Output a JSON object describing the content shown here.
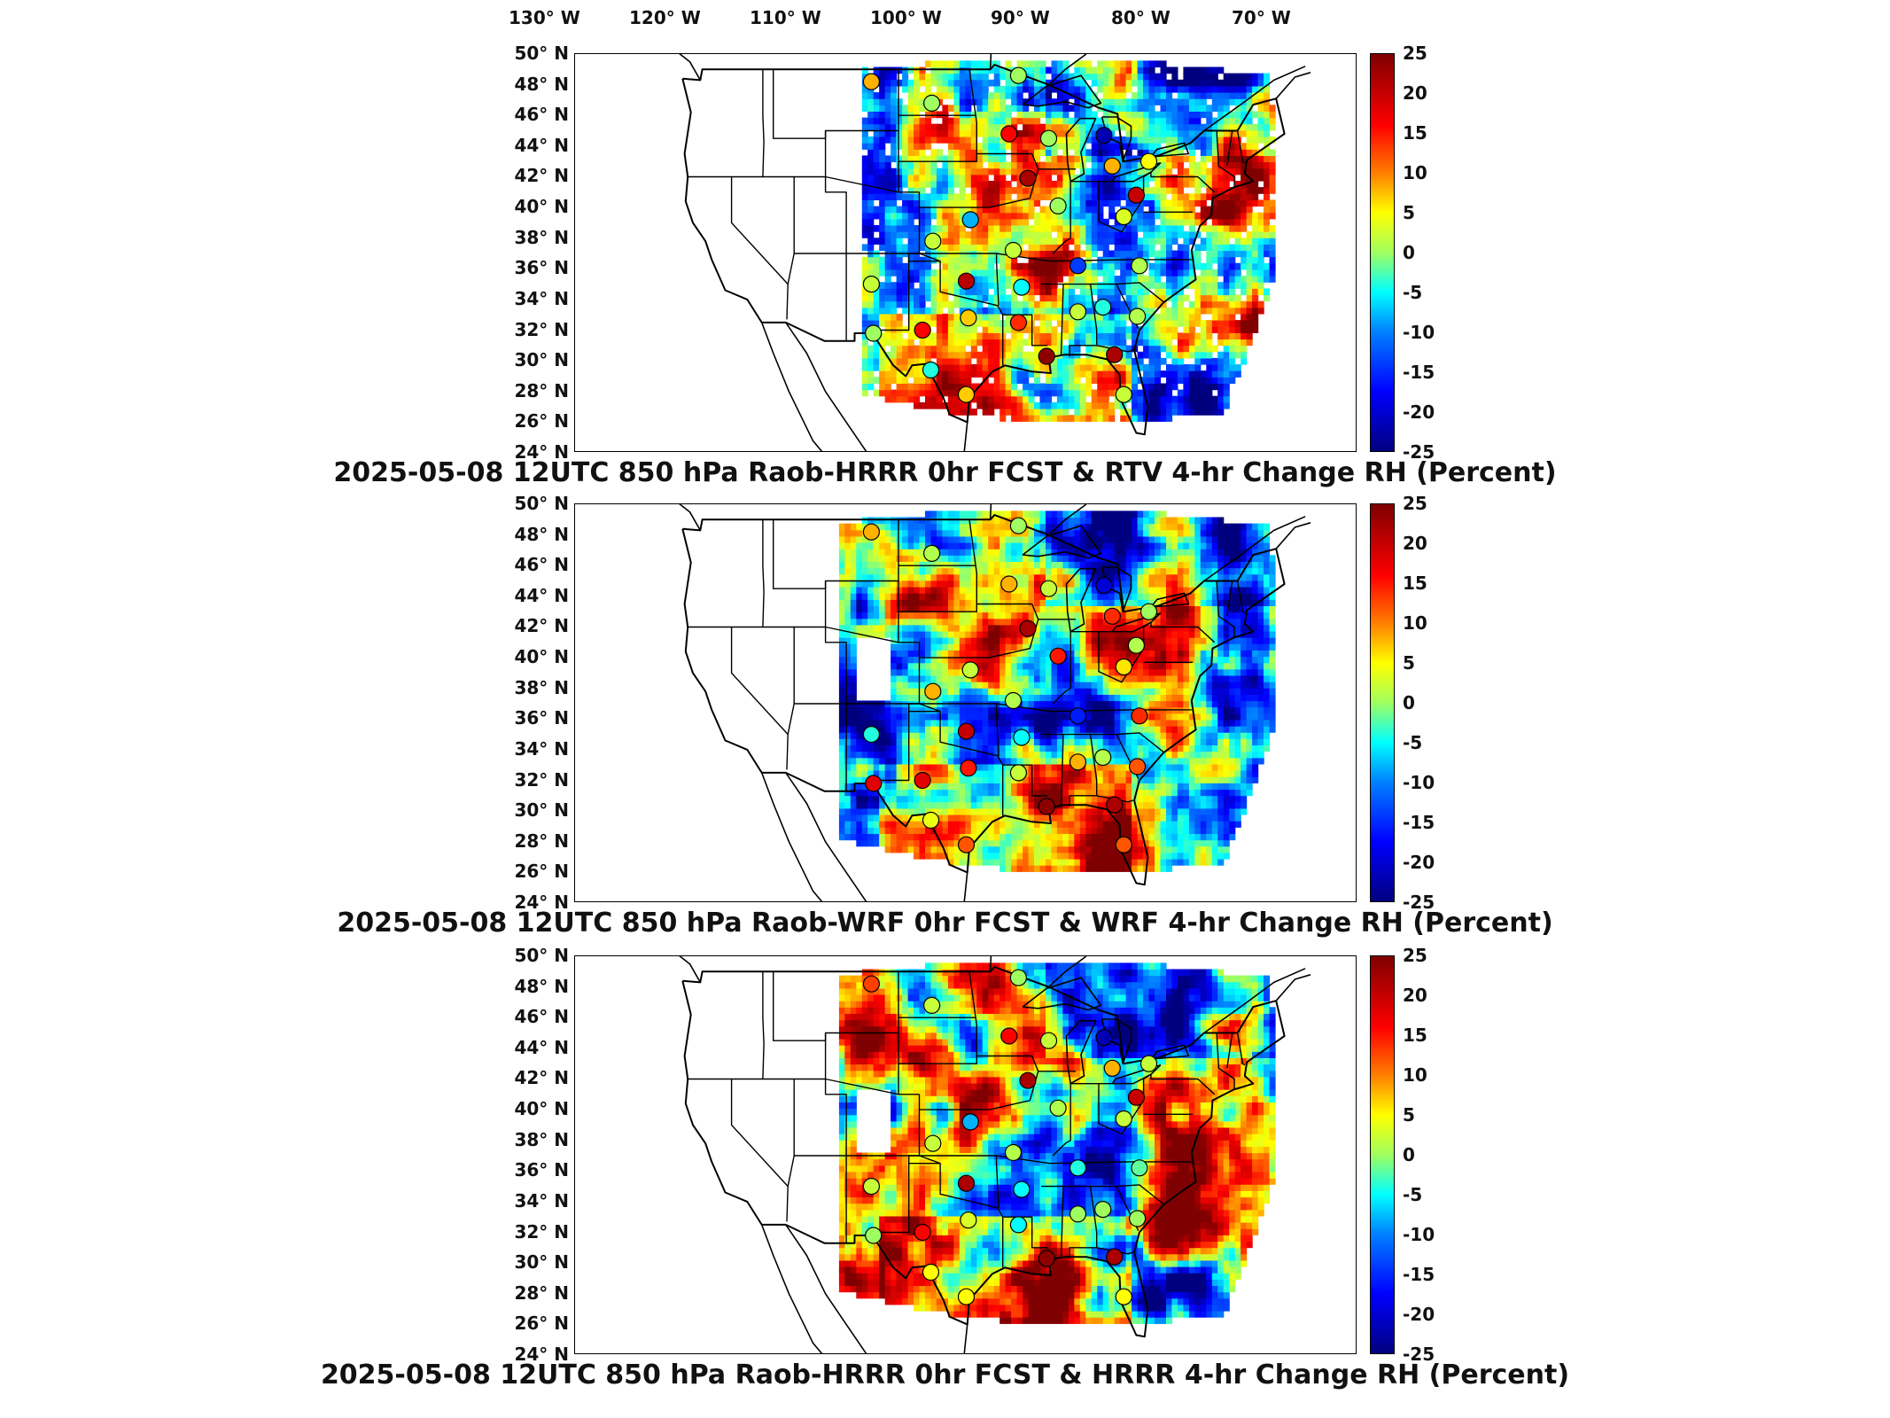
{
  "lon_labels": [
    "130° W",
    "120° W",
    "110° W",
    "100° W",
    "90° W",
    "80° W",
    "70° W"
  ],
  "lat_labels": [
    "50° N",
    "48° N",
    "46° N",
    "44° N",
    "42° N",
    "40° N",
    "38° N",
    "36° N",
    "34° N",
    "32° N",
    "30° N",
    "28° N",
    "26° N",
    "24° N"
  ],
  "colorbar_ticks": [
    "25",
    "20",
    "15",
    "10",
    "5",
    "0",
    "-5",
    "-10",
    "-15",
    "-20",
    "-25"
  ],
  "colorbar_range": [
    -25,
    25
  ],
  "colormap": "jet",
  "panels": [
    {
      "caption": "2025-05-08 12UTC 850 hPa Raob-HRRR 0hr FCST & RTV 4-hr Change RH (Percent)",
      "stations": [
        {
          "lon": -106.6,
          "lat": 48.2,
          "value": 8
        },
        {
          "lon": -100.8,
          "lat": 46.8,
          "value": 0
        },
        {
          "lon": -92.5,
          "lat": 48.6,
          "value": 0
        },
        {
          "lon": -93.4,
          "lat": 44.8,
          "value": 16
        },
        {
          "lon": -89.6,
          "lat": 44.5,
          "value": 0
        },
        {
          "lon": -84.3,
          "lat": 44.7,
          "value": -22
        },
        {
          "lon": -83.5,
          "lat": 42.7,
          "value": 8
        },
        {
          "lon": -80.0,
          "lat": 43.0,
          "value": 5
        },
        {
          "lon": -91.6,
          "lat": 41.9,
          "value": 22
        },
        {
          "lon": -88.7,
          "lat": 40.1,
          "value": 0
        },
        {
          "lon": -81.2,
          "lat": 40.8,
          "value": 20
        },
        {
          "lon": -82.4,
          "lat": 39.4,
          "value": 3
        },
        {
          "lon": -97.1,
          "lat": 39.2,
          "value": -8
        },
        {
          "lon": -100.7,
          "lat": 37.8,
          "value": 2
        },
        {
          "lon": -93.0,
          "lat": 37.2,
          "value": 2
        },
        {
          "lon": -97.5,
          "lat": 35.2,
          "value": 21
        },
        {
          "lon": -92.2,
          "lat": 34.8,
          "value": -5
        },
        {
          "lon": -86.8,
          "lat": 36.2,
          "value": -14
        },
        {
          "lon": -80.9,
          "lat": 36.2,
          "value": 1
        },
        {
          "lon": -106.6,
          "lat": 35.0,
          "value": 2
        },
        {
          "lon": -101.7,
          "lat": 32.0,
          "value": 16
        },
        {
          "lon": -97.3,
          "lat": 32.8,
          "value": 7
        },
        {
          "lon": -92.5,
          "lat": 32.5,
          "value": 14
        },
        {
          "lon": -86.8,
          "lat": 33.2,
          "value": 2
        },
        {
          "lon": -84.4,
          "lat": 33.5,
          "value": -4
        },
        {
          "lon": -81.1,
          "lat": 32.9,
          "value": 1
        },
        {
          "lon": -89.8,
          "lat": 30.3,
          "value": 24
        },
        {
          "lon": -83.3,
          "lat": 30.4,
          "value": 22
        },
        {
          "lon": -106.4,
          "lat": 31.8,
          "value": 0
        },
        {
          "lon": -100.9,
          "lat": 29.4,
          "value": -4
        },
        {
          "lon": -97.5,
          "lat": 27.8,
          "value": 7
        },
        {
          "lon": -82.4,
          "lat": 27.8,
          "value": 2
        }
      ]
    },
    {
      "caption": "2025-05-08 12UTC 850 hPa Raob-WRF 0hr FCST & WRF 4-hr Change RH (Percent)",
      "stations": [
        {
          "lon": -106.6,
          "lat": 48.2,
          "value": 8
        },
        {
          "lon": -100.8,
          "lat": 46.8,
          "value": 1
        },
        {
          "lon": -92.5,
          "lat": 48.6,
          "value": 0
        },
        {
          "lon": -93.4,
          "lat": 44.8,
          "value": 8
        },
        {
          "lon": -89.6,
          "lat": 44.5,
          "value": 2
        },
        {
          "lon": -84.3,
          "lat": 44.7,
          "value": -20
        },
        {
          "lon": -83.5,
          "lat": 42.7,
          "value": 14
        },
        {
          "lon": -80.0,
          "lat": 43.0,
          "value": 0
        },
        {
          "lon": -91.6,
          "lat": 41.9,
          "value": 22
        },
        {
          "lon": -88.7,
          "lat": 40.1,
          "value": 15
        },
        {
          "lon": -81.2,
          "lat": 40.8,
          "value": 1
        },
        {
          "lon": -82.4,
          "lat": 39.4,
          "value": 6
        },
        {
          "lon": -97.1,
          "lat": 39.2,
          "value": 2
        },
        {
          "lon": -100.7,
          "lat": 37.8,
          "value": 8
        },
        {
          "lon": -93.0,
          "lat": 37.2,
          "value": 1
        },
        {
          "lon": -97.5,
          "lat": 35.2,
          "value": 20
        },
        {
          "lon": -92.2,
          "lat": 34.8,
          "value": -5
        },
        {
          "lon": -86.8,
          "lat": 36.2,
          "value": -16
        },
        {
          "lon": -80.9,
          "lat": 36.2,
          "value": 14
        },
        {
          "lon": -106.6,
          "lat": 35.0,
          "value": -4
        },
        {
          "lon": -101.7,
          "lat": 32.0,
          "value": 18
        },
        {
          "lon": -97.3,
          "lat": 32.8,
          "value": 15
        },
        {
          "lon": -92.5,
          "lat": 32.5,
          "value": 2
        },
        {
          "lon": -86.8,
          "lat": 33.2,
          "value": 8
        },
        {
          "lon": -84.4,
          "lat": 33.5,
          "value": 1
        },
        {
          "lon": -81.1,
          "lat": 32.9,
          "value": 12
        },
        {
          "lon": -89.8,
          "lat": 30.3,
          "value": 24
        },
        {
          "lon": -83.3,
          "lat": 30.4,
          "value": 22
        },
        {
          "lon": -106.4,
          "lat": 31.8,
          "value": 18
        },
        {
          "lon": -100.9,
          "lat": 29.4,
          "value": 4
        },
        {
          "lon": -97.5,
          "lat": 27.8,
          "value": 12
        },
        {
          "lon": -82.4,
          "lat": 27.8,
          "value": 12
        }
      ]
    },
    {
      "caption": "2025-05-08 12UTC 850 hPa Raob-HRRR 0hr FCST & HRRR 4-hr Change RH (Percent)",
      "stations": [
        {
          "lon": -106.6,
          "lat": 48.2,
          "value": 13
        },
        {
          "lon": -100.8,
          "lat": 46.8,
          "value": 2
        },
        {
          "lon": -92.5,
          "lat": 48.6,
          "value": 0
        },
        {
          "lon": -93.4,
          "lat": 44.8,
          "value": 16
        },
        {
          "lon": -89.6,
          "lat": 44.5,
          "value": 2
        },
        {
          "lon": -84.3,
          "lat": 44.7,
          "value": -22
        },
        {
          "lon": -83.5,
          "lat": 42.7,
          "value": 8
        },
        {
          "lon": -80.0,
          "lat": 43.0,
          "value": 2
        },
        {
          "lon": -91.6,
          "lat": 41.9,
          "value": 22
        },
        {
          "lon": -88.7,
          "lat": 40.1,
          "value": 1
        },
        {
          "lon": -81.2,
          "lat": 40.8,
          "value": 20
        },
        {
          "lon": -82.4,
          "lat": 39.4,
          "value": 2
        },
        {
          "lon": -97.1,
          "lat": 39.2,
          "value": -8
        },
        {
          "lon": -100.7,
          "lat": 37.8,
          "value": 2
        },
        {
          "lon": -93.0,
          "lat": 37.2,
          "value": 1
        },
        {
          "lon": -97.5,
          "lat": 35.2,
          "value": 22
        },
        {
          "lon": -92.2,
          "lat": 34.8,
          "value": -5
        },
        {
          "lon": -86.8,
          "lat": 36.2,
          "value": -4
        },
        {
          "lon": -80.9,
          "lat": 36.2,
          "value": -2
        },
        {
          "lon": -106.6,
          "lat": 35.0,
          "value": 2
        },
        {
          "lon": -101.7,
          "lat": 32.0,
          "value": 16
        },
        {
          "lon": -97.3,
          "lat": 32.8,
          "value": 3
        },
        {
          "lon": -92.5,
          "lat": 32.5,
          "value": -5
        },
        {
          "lon": -86.8,
          "lat": 33.2,
          "value": 0
        },
        {
          "lon": -84.4,
          "lat": 33.5,
          "value": 0
        },
        {
          "lon": -81.1,
          "lat": 32.9,
          "value": 0
        },
        {
          "lon": -89.8,
          "lat": 30.3,
          "value": 24
        },
        {
          "lon": -83.3,
          "lat": 30.4,
          "value": 22
        },
        {
          "lon": -106.4,
          "lat": 31.8,
          "value": 0
        },
        {
          "lon": -100.9,
          "lat": 29.4,
          "value": 5
        },
        {
          "lon": -97.5,
          "lat": 27.8,
          "value": 5
        },
        {
          "lon": -82.4,
          "lat": 27.8,
          "value": 5
        }
      ]
    }
  ]
}
